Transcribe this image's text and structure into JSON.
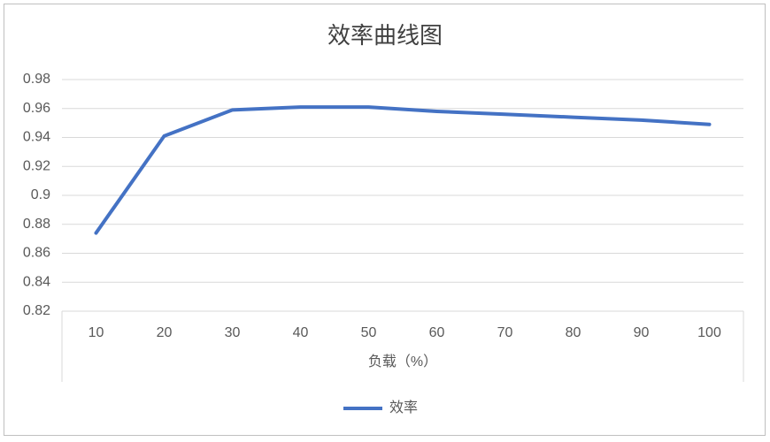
{
  "chart_data": {
    "type": "line",
    "title": "效率曲线图",
    "x_label": "负载（%）",
    "categories": [
      "10",
      "20",
      "30",
      "40",
      "50",
      "60",
      "70",
      "80",
      "90",
      "100"
    ],
    "series": [
      {
        "name": "效率",
        "color": "#4472c4",
        "values": [
          0.874,
          0.941,
          0.959,
          0.961,
          0.961,
          0.958,
          0.956,
          0.954,
          0.952,
          0.949
        ]
      }
    ],
    "ylim": [
      0.82,
      0.98
    ],
    "yticks": [
      0.82,
      0.84,
      0.86,
      0.88,
      0.9,
      0.92,
      0.94,
      0.96,
      0.98
    ],
    "grid": true,
    "legend": "bottom"
  }
}
